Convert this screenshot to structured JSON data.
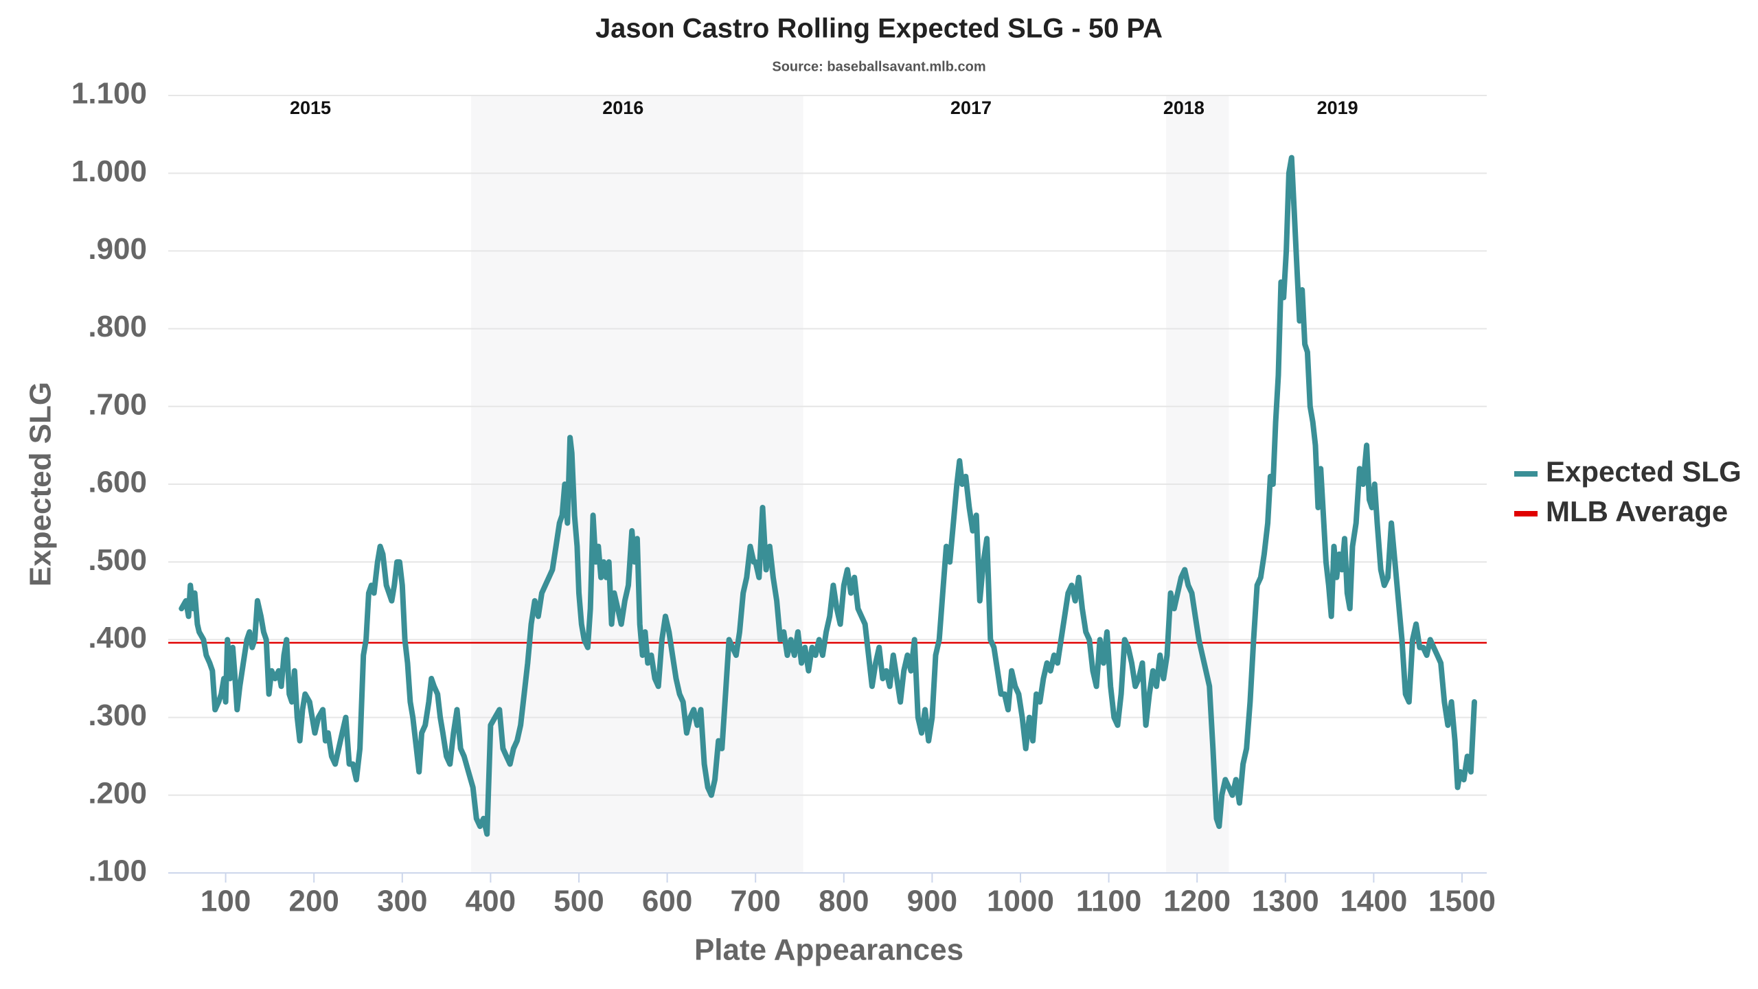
{
  "chart_data": {
    "type": "line",
    "title": "Jason Castro Rolling Expected SLG - 50 PA",
    "subtitle": "Source: baseballsavant.mlb.com",
    "x_label": "Plate Appearances",
    "y_label": "Expected SLG",
    "xlim": [
      35,
      1528
    ],
    "ylim": [
      0.1,
      1.1
    ],
    "xticks": [
      100,
      200,
      300,
      400,
      500,
      600,
      700,
      800,
      900,
      1000,
      1100,
      1200,
      1300,
      1400,
      1500
    ],
    "yticks": [
      {
        "value": 0.1,
        "label": ".100"
      },
      {
        "value": 0.2,
        "label": ".200"
      },
      {
        "value": 0.3,
        "label": ".300"
      },
      {
        "value": 0.4,
        "label": ".400"
      },
      {
        "value": 0.5,
        "label": ".500"
      },
      {
        "value": 0.6,
        "label": ".600"
      },
      {
        "value": 0.7,
        "label": ".700"
      },
      {
        "value": 0.8,
        "label": ".800"
      },
      {
        "value": 0.9,
        "label": ".900"
      },
      {
        "value": 1.0,
        "label": "1.000"
      },
      {
        "value": 1.1,
        "label": "1.100"
      }
    ],
    "grid": true,
    "legend": "right",
    "shaded_ranges": [
      {
        "start": 378,
        "end": 754,
        "color": "#f7f7f8"
      },
      {
        "start": 1165,
        "end": 1236,
        "color": "#f7f7f8"
      }
    ],
    "season_labels": [
      {
        "text": "2015",
        "x": 196
      },
      {
        "text": "2016",
        "x": 550
      },
      {
        "text": "2017",
        "x": 944
      },
      {
        "text": "2018",
        "x": 1185
      },
      {
        "text": "2019",
        "x": 1359
      }
    ],
    "reference_lines": [
      {
        "name": "MLB Average",
        "color": "#e00000",
        "value": 0.396
      }
    ],
    "x": [
      50,
      55,
      58,
      60,
      63,
      65,
      68,
      70,
      75,
      78,
      82,
      85,
      88,
      92,
      95,
      98,
      100,
      102,
      105,
      108,
      110,
      113,
      116,
      120,
      124,
      127,
      130,
      133,
      136,
      140,
      143,
      146,
      149,
      152,
      156,
      160,
      163,
      166,
      169,
      172,
      175,
      178,
      181,
      184,
      187,
      190,
      195,
      198,
      201,
      205,
      210,
      213,
      216,
      220,
      224,
      228,
      232,
      236,
      240,
      244,
      248,
      252,
      256,
      259,
      262,
      265,
      268,
      272,
      275,
      278,
      282,
      285,
      288,
      291,
      294,
      297,
      300,
      303,
      306,
      309,
      312,
      316,
      319,
      322,
      326,
      330,
      333,
      336,
      340,
      343,
      346,
      350,
      354,
      358,
      362,
      366,
      370,
      375,
      380,
      384,
      388,
      392,
      396,
      400,
      405,
      410,
      414,
      418,
      422,
      426,
      430,
      434,
      438,
      442,
      446,
      450,
      454,
      458,
      462,
      466,
      470,
      474,
      478,
      481,
      484,
      487,
      490,
      492,
      495,
      498,
      500,
      503,
      506,
      510,
      513,
      516,
      519,
      522,
      525,
      528,
      531,
      534,
      537,
      540,
      544,
      548,
      552,
      556,
      560,
      563,
      566,
      569,
      572,
      575,
      578,
      582,
      586,
      590,
      594,
      598,
      602,
      606,
      610,
      614,
      618,
      622,
      626,
      630,
      634,
      638,
      642,
      646,
      650,
      654,
      658,
      662,
      666,
      670,
      674,
      678,
      682,
      686,
      690,
      694,
      698,
      700,
      704,
      708,
      712,
      716,
      720,
      724,
      728,
      732,
      736,
      740,
      744,
      748,
      752,
      756,
      760,
      764,
      768,
      772,
      776,
      780,
      784,
      788,
      792,
      796,
      800,
      804,
      808,
      812,
      816,
      820,
      824,
      828,
      832,
      836,
      840,
      844,
      848,
      852,
      856,
      860,
      864,
      868,
      872,
      876,
      880,
      884,
      888,
      892,
      896,
      900,
      904,
      908,
      912,
      916,
      920,
      924,
      928,
      931,
      934,
      938,
      942,
      946,
      950,
      954,
      958,
      962,
      966,
      970,
      974,
      978,
      982,
      986,
      990,
      994,
      998,
      1002,
      1006,
      1010,
      1014,
      1018,
      1022,
      1026,
      1030,
      1034,
      1038,
      1042,
      1046,
      1050,
      1054,
      1058,
      1062,
      1066,
      1070,
      1074,
      1078,
      1082,
      1086,
      1090,
      1094,
      1098,
      1102,
      1106,
      1110,
      1114,
      1118,
      1122,
      1126,
      1130,
      1134,
      1138,
      1142,
      1146,
      1150,
      1154,
      1158,
      1162,
      1166,
      1170,
      1174,
      1178,
      1182,
      1186,
      1190,
      1194,
      1198,
      1202,
      1206,
      1210,
      1214,
      1218,
      1222,
      1225,
      1228,
      1232,
      1236,
      1240,
      1244,
      1248,
      1252,
      1256,
      1260,
      1264,
      1268,
      1272,
      1276,
      1280,
      1283,
      1286,
      1289,
      1292,
      1295,
      1298,
      1301,
      1304,
      1307,
      1310,
      1313,
      1316,
      1319,
      1322,
      1325,
      1328,
      1331,
      1334,
      1337,
      1340,
      1343,
      1346,
      1349,
      1352,
      1355,
      1358,
      1361,
      1364,
      1367,
      1370,
      1373,
      1376,
      1380,
      1384,
      1388,
      1392,
      1395,
      1398,
      1401,
      1404,
      1408,
      1412,
      1416,
      1420,
      1424,
      1428,
      1432,
      1436,
      1440,
      1444,
      1448,
      1452,
      1456,
      1460,
      1464,
      1468,
      1472,
      1476,
      1480,
      1484,
      1488,
      1492,
      1495,
      1498,
      1502,
      1506,
      1510,
      1514
    ],
    "series": [
      {
        "name": "Expected SLG",
        "color": "#3a8f96",
        "values": [
          0.44,
          0.45,
          0.43,
          0.47,
          0.44,
          0.46,
          0.42,
          0.41,
          0.4,
          0.38,
          0.37,
          0.36,
          0.31,
          0.32,
          0.33,
          0.35,
          0.32,
          0.4,
          0.35,
          0.39,
          0.36,
          0.31,
          0.34,
          0.37,
          0.4,
          0.41,
          0.39,
          0.4,
          0.45,
          0.43,
          0.41,
          0.4,
          0.33,
          0.36,
          0.35,
          0.36,
          0.34,
          0.38,
          0.4,
          0.33,
          0.32,
          0.36,
          0.3,
          0.27,
          0.31,
          0.33,
          0.32,
          0.3,
          0.28,
          0.3,
          0.31,
          0.27,
          0.28,
          0.25,
          0.24,
          0.26,
          0.28,
          0.3,
          0.24,
          0.24,
          0.22,
          0.26,
          0.38,
          0.4,
          0.46,
          0.47,
          0.46,
          0.5,
          0.52,
          0.51,
          0.47,
          0.46,
          0.45,
          0.47,
          0.5,
          0.5,
          0.47,
          0.4,
          0.37,
          0.32,
          0.3,
          0.26,
          0.23,
          0.28,
          0.29,
          0.32,
          0.35,
          0.34,
          0.33,
          0.3,
          0.28,
          0.25,
          0.24,
          0.28,
          0.31,
          0.26,
          0.25,
          0.23,
          0.21,
          0.17,
          0.16,
          0.17,
          0.15,
          0.29,
          0.3,
          0.31,
          0.26,
          0.25,
          0.24,
          0.26,
          0.27,
          0.29,
          0.33,
          0.37,
          0.42,
          0.45,
          0.43,
          0.46,
          0.47,
          0.48,
          0.49,
          0.52,
          0.55,
          0.56,
          0.6,
          0.55,
          0.66,
          0.64,
          0.56,
          0.52,
          0.46,
          0.42,
          0.4,
          0.39,
          0.44,
          0.56,
          0.5,
          0.52,
          0.48,
          0.5,
          0.48,
          0.5,
          0.42,
          0.46,
          0.44,
          0.42,
          0.45,
          0.47,
          0.54,
          0.5,
          0.53,
          0.42,
          0.38,
          0.41,
          0.37,
          0.38,
          0.35,
          0.34,
          0.4,
          0.43,
          0.41,
          0.38,
          0.35,
          0.33,
          0.32,
          0.28,
          0.3,
          0.31,
          0.29,
          0.31,
          0.24,
          0.21,
          0.2,
          0.22,
          0.27,
          0.26,
          0.33,
          0.4,
          0.39,
          0.38,
          0.41,
          0.46,
          0.48,
          0.52,
          0.5,
          0.5,
          0.48,
          0.57,
          0.49,
          0.52,
          0.48,
          0.45,
          0.4,
          0.41,
          0.38,
          0.4,
          0.38,
          0.41,
          0.37,
          0.39,
          0.36,
          0.39,
          0.38,
          0.4,
          0.38,
          0.41,
          0.43,
          0.47,
          0.44,
          0.42,
          0.47,
          0.49,
          0.46,
          0.48,
          0.44,
          0.43,
          0.42,
          0.38,
          0.34,
          0.37,
          0.39,
          0.35,
          0.36,
          0.34,
          0.38,
          0.35,
          0.32,
          0.36,
          0.38,
          0.36,
          0.4,
          0.3,
          0.28,
          0.31,
          0.27,
          0.3,
          0.38,
          0.4,
          0.46,
          0.52,
          0.5,
          0.55,
          0.6,
          0.63,
          0.6,
          0.61,
          0.57,
          0.54,
          0.56,
          0.45,
          0.5,
          0.53,
          0.4,
          0.39,
          0.36,
          0.33,
          0.33,
          0.31,
          0.36,
          0.34,
          0.33,
          0.3,
          0.26,
          0.3,
          0.27,
          0.33,
          0.32,
          0.35,
          0.37,
          0.36,
          0.38,
          0.37,
          0.4,
          0.43,
          0.46,
          0.47,
          0.45,
          0.48,
          0.44,
          0.41,
          0.4,
          0.36,
          0.34,
          0.4,
          0.37,
          0.41,
          0.34,
          0.3,
          0.29,
          0.33,
          0.4,
          0.39,
          0.37,
          0.34,
          0.35,
          0.37,
          0.29,
          0.33,
          0.36,
          0.34,
          0.38,
          0.35,
          0.38,
          0.46,
          0.44,
          0.46,
          0.48,
          0.49,
          0.47,
          0.46,
          0.43,
          0.4,
          0.38,
          0.36,
          0.34,
          0.26,
          0.17,
          0.16,
          0.2,
          0.22,
          0.21,
          0.2,
          0.22,
          0.19,
          0.24,
          0.26,
          0.32,
          0.4,
          0.47,
          0.48,
          0.51,
          0.55,
          0.61,
          0.6,
          0.68,
          0.74,
          0.86,
          0.84,
          0.9,
          1.0,
          1.02,
          0.95,
          0.88,
          0.81,
          0.85,
          0.78,
          0.77,
          0.7,
          0.68,
          0.65,
          0.57,
          0.62,
          0.56,
          0.5,
          0.47,
          0.43,
          0.52,
          0.48,
          0.51,
          0.49,
          0.53,
          0.46,
          0.44,
          0.52,
          0.55,
          0.62,
          0.6,
          0.65,
          0.58,
          0.57,
          0.6,
          0.55,
          0.49,
          0.47,
          0.48,
          0.55,
          0.5,
          0.45,
          0.4,
          0.33,
          0.32,
          0.4,
          0.42,
          0.39,
          0.39,
          0.38,
          0.4,
          0.39,
          0.38,
          0.37,
          0.32,
          0.29,
          0.32,
          0.27,
          0.21,
          0.23,
          0.22,
          0.25,
          0.23,
          0.32
        ]
      }
    ]
  }
}
